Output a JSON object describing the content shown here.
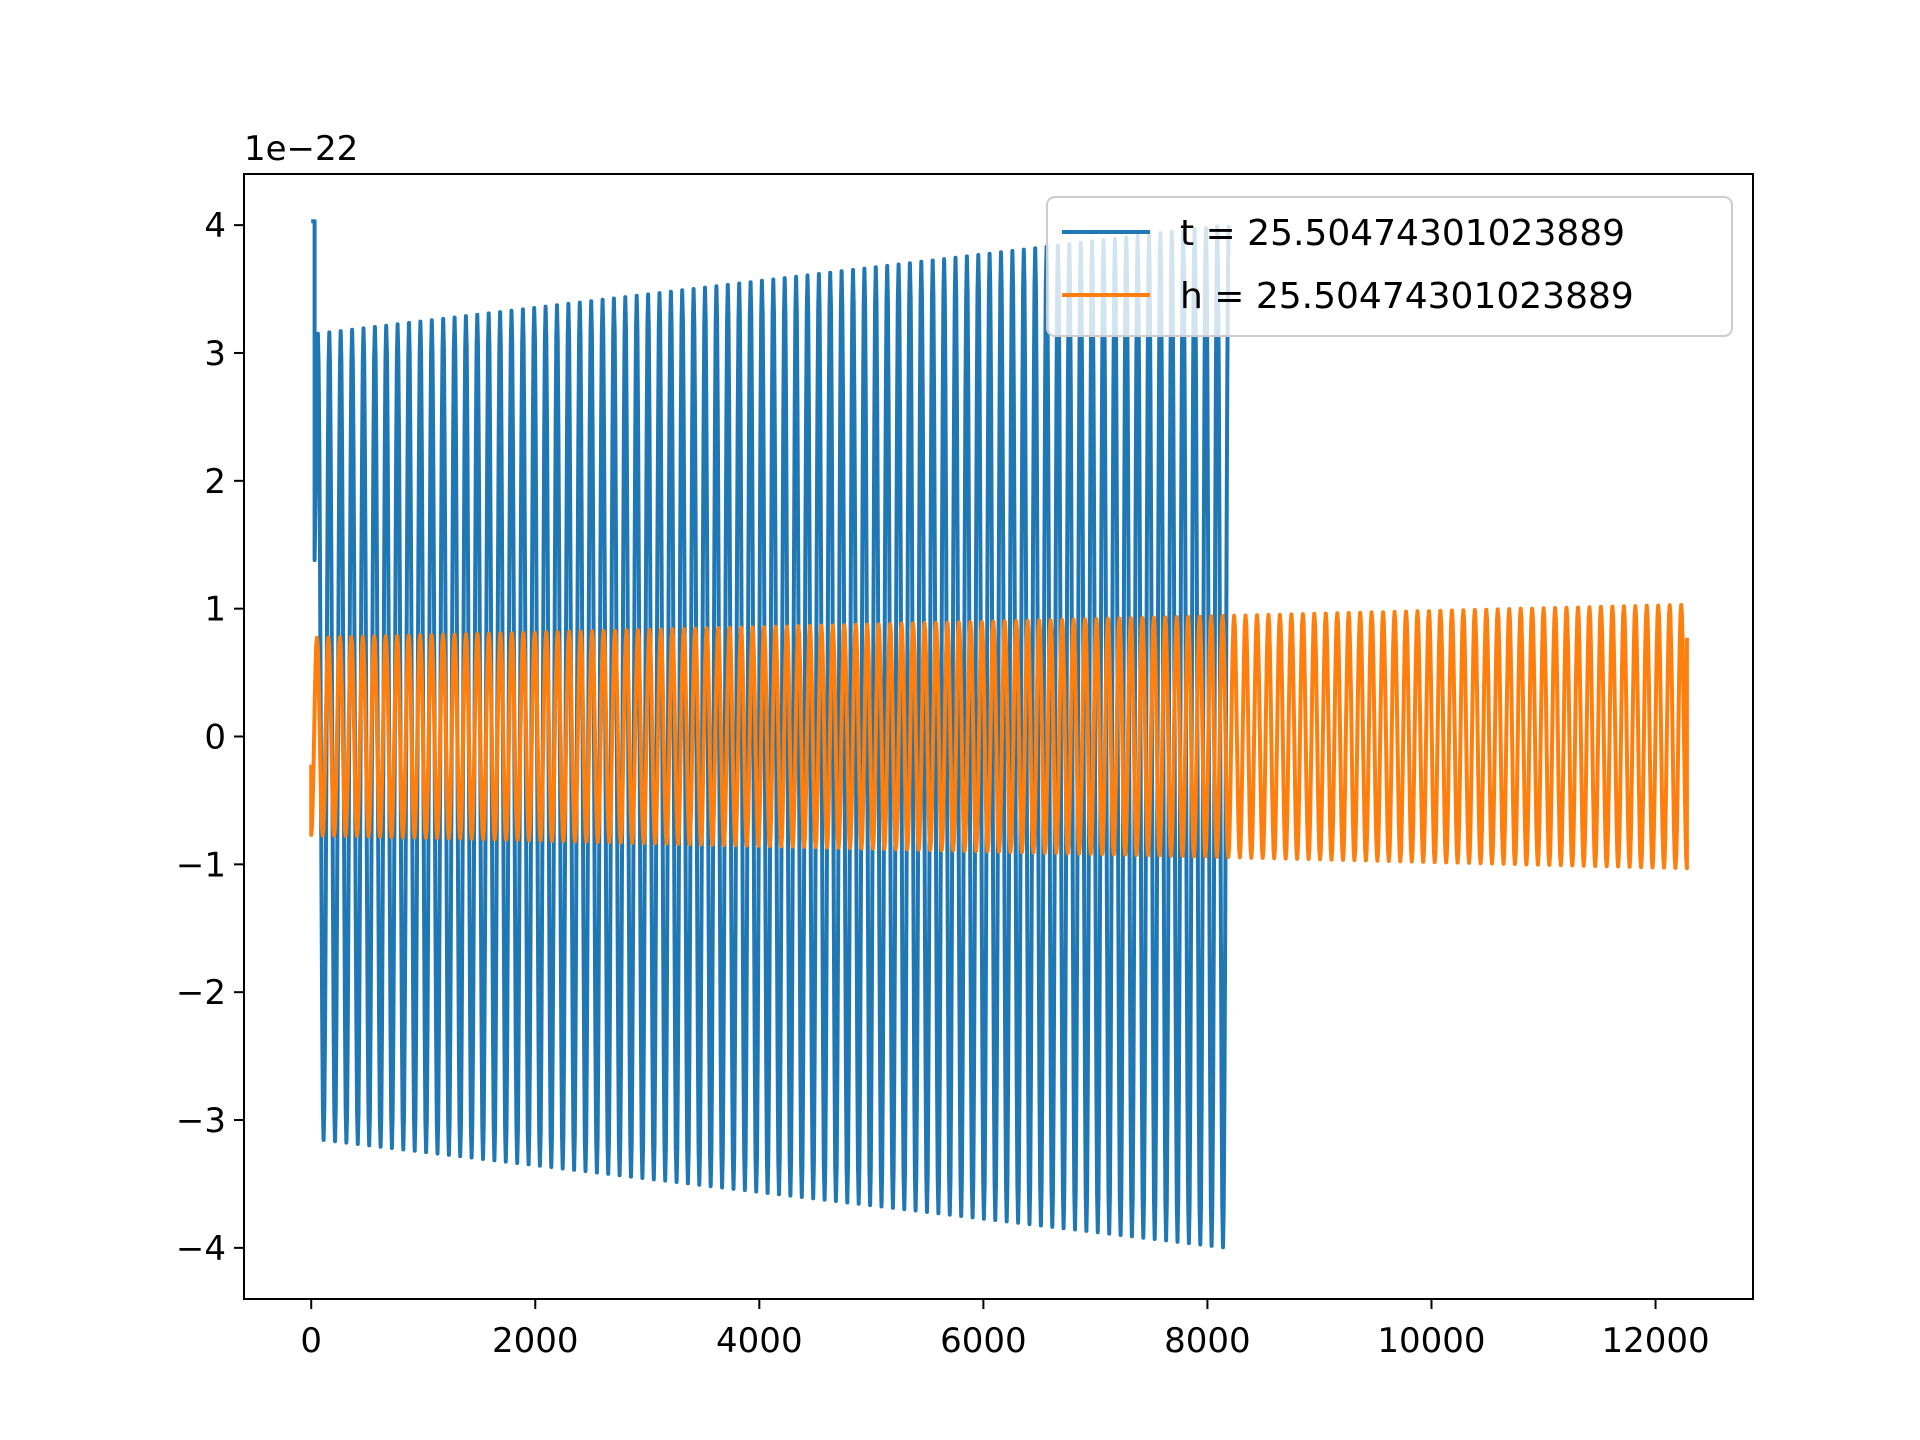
{
  "chart_data": {
    "type": "line",
    "title": "",
    "xlabel": "",
    "ylabel": "",
    "xlim": [
      -600,
      12870
    ],
    "ylim": [
      -4.4e-22,
      4.4e-22
    ],
    "y_offset_label": "1e−22",
    "x_ticks": [
      0,
      2000,
      4000,
      6000,
      8000,
      10000,
      12000
    ],
    "x_tick_labels": [
      "0",
      "2000",
      "4000",
      "6000",
      "8000",
      "10000",
      "12000"
    ],
    "y_ticks": [
      -4e-22,
      -3e-22,
      -2e-22,
      -1e-22,
      0,
      1e-22,
      2e-22,
      3e-22,
      4e-22
    ],
    "y_tick_labels": [
      "−4",
      "−3",
      "−2",
      "−1",
      "0",
      "1",
      "2",
      "3",
      "4"
    ],
    "grid": false,
    "legend_position": "top-right",
    "series": [
      {
        "name": "t = 25.50474301023889",
        "color": "#1f77b4",
        "x_range": [
          0,
          8190
        ],
        "cycles": 80,
        "amplitude_start": 3.15e-22,
        "amplitude_end": 4e-22,
        "initial_peak": 4.03e-22
      },
      {
        "name": "h = 25.50474301023889",
        "color": "#ff7f0e",
        "x_range": [
          0,
          12280
        ],
        "cycles": 120,
        "amplitude_start": 7.7e-23,
        "amplitude_end": 1.03e-22,
        "initial_value": -2.2e-23
      }
    ]
  }
}
